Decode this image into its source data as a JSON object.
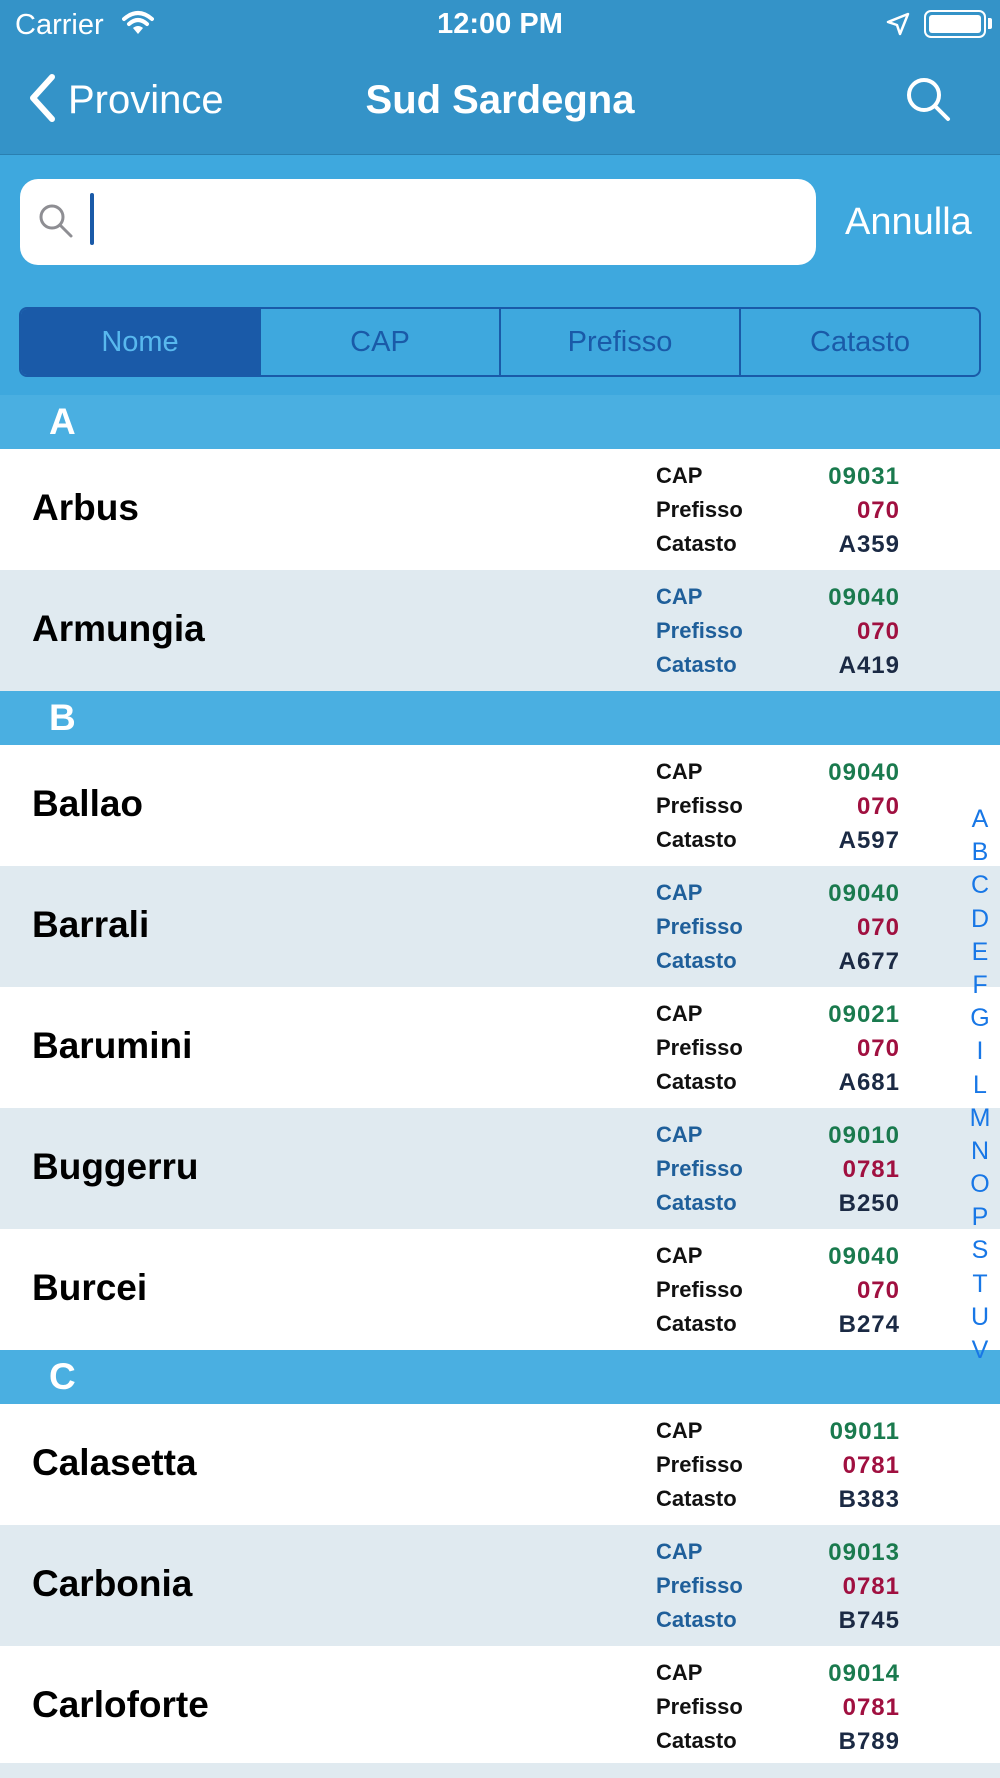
{
  "status_bar": {
    "carrier": "Carrier",
    "time": "12:00 PM"
  },
  "nav": {
    "back_label": "Province",
    "title": "Sud Sardegna"
  },
  "search": {
    "value": "",
    "placeholder": "",
    "cancel_label": "Annulla"
  },
  "segments": [
    {
      "label": "Nome",
      "active": true
    },
    {
      "label": "CAP",
      "active": false
    },
    {
      "label": "Prefisso",
      "active": false
    },
    {
      "label": "Catasto",
      "active": false
    }
  ],
  "labels": {
    "cap": "CAP",
    "prefisso": "Prefisso",
    "catasto": "Catasto"
  },
  "sections": [
    {
      "letter": "A",
      "rows": [
        {
          "name": "Arbus",
          "cap": "09031",
          "prefisso": "070",
          "catasto": "A359"
        },
        {
          "name": "Armungia",
          "cap": "09040",
          "prefisso": "070",
          "catasto": "A419"
        }
      ]
    },
    {
      "letter": "B",
      "rows": [
        {
          "name": "Ballao",
          "cap": "09040",
          "prefisso": "070",
          "catasto": "A597"
        },
        {
          "name": "Barrali",
          "cap": "09040",
          "prefisso": "070",
          "catasto": "A677"
        },
        {
          "name": "Barumini",
          "cap": "09021",
          "prefisso": "070",
          "catasto": "A681"
        },
        {
          "name": "Buggerru",
          "cap": "09010",
          "prefisso": "0781",
          "catasto": "B250"
        },
        {
          "name": "Burcei",
          "cap": "09040",
          "prefisso": "070",
          "catasto": "B274"
        }
      ]
    },
    {
      "letter": "C",
      "rows": [
        {
          "name": "Calasetta",
          "cap": "09011",
          "prefisso": "0781",
          "catasto": "B383"
        },
        {
          "name": "Carbonia",
          "cap": "09013",
          "prefisso": "0781",
          "catasto": "B745"
        },
        {
          "name": "Carloforte",
          "cap": "09014",
          "prefisso": "0781",
          "catasto": "B789"
        }
      ]
    }
  ],
  "index_letters": [
    "A",
    "B",
    "C",
    "D",
    "E",
    "F",
    "G",
    "I",
    "L",
    "M",
    "N",
    "O",
    "P",
    "S",
    "T",
    "U",
    "V"
  ],
  "colors": {
    "header": "#3493c8",
    "search_area": "#3ea8de",
    "section": "#4aafe1",
    "accent": "#1a5aa8",
    "cap": "#1a7a4e",
    "prefisso": "#a01040",
    "catasto": "#1b2a44"
  }
}
